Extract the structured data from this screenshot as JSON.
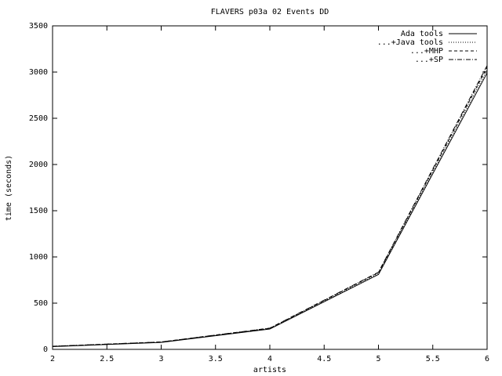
{
  "chart_data": {
    "type": "line",
    "title": "FLAVERS p03a 02 Events DD",
    "x_label": "artists",
    "y_label": "time (seconds)",
    "x": [
      2,
      3,
      4,
      5,
      6
    ],
    "series": [
      {
        "name": "Ada tools",
        "color": "#000000",
        "dash": "solid",
        "values": [
          30,
          75,
          220,
          810,
          2990
        ]
      },
      {
        "name": "...+Java tools",
        "color": "#000000",
        "dash": "dotted",
        "values": [
          32,
          78,
          225,
          820,
          3020
        ]
      },
      {
        "name": "...+MHP",
        "color": "#000000",
        "dash": "dashed",
        "values": [
          33,
          80,
          228,
          830,
          3050
        ]
      },
      {
        "name": "...+SP",
        "color": "#000000",
        "dash": "dash-dot",
        "values": [
          34,
          80,
          230,
          835,
          3070
        ]
      }
    ],
    "xlim": [
      2,
      6
    ],
    "xticks": [
      2,
      2.5,
      3,
      3.5,
      4,
      4.5,
      5,
      5.5,
      6
    ],
    "ylim": [
      0,
      3500
    ],
    "yticks": [
      0,
      500,
      1000,
      1500,
      2000,
      2500,
      3000,
      3500
    ],
    "grid": false,
    "legend": "top-right"
  }
}
